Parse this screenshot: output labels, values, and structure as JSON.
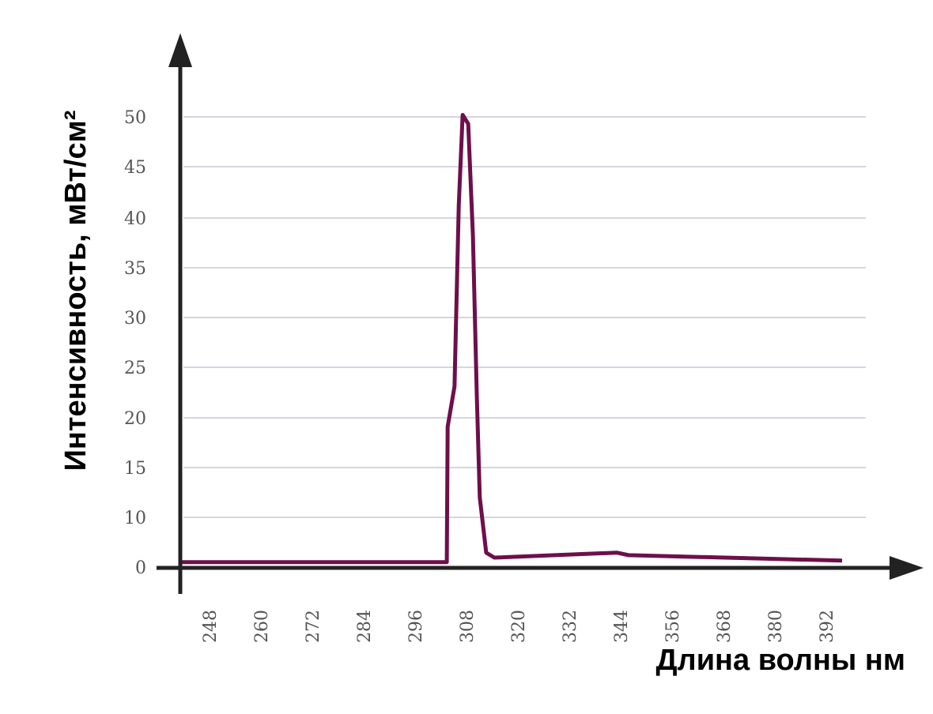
{
  "chart_data": {
    "type": "line",
    "title": "",
    "xlabel": "Длина волны нм",
    "ylabel": "Интенсивность, мВт/см²",
    "xticks": [
      248,
      260,
      272,
      284,
      296,
      308,
      320,
      332,
      344,
      356,
      368,
      380,
      392
    ],
    "yticks": [
      0,
      10,
      15,
      20,
      25,
      30,
      35,
      40,
      45,
      50
    ],
    "xlim": [
      241,
      400
    ],
    "ylim": [
      0,
      50
    ],
    "grid": true,
    "line_color": "#6e0f4a",
    "series": [
      {
        "x": [
          241.5,
          303.4,
          303.6,
          305.2,
          306.2,
          307.1,
          308.4,
          309.5,
          310.4,
          311.1,
          312.6,
          314.5,
          343.1,
          345.8,
          395.7
        ],
        "y": [
          1.0,
          1.0,
          19.1,
          23.1,
          41.3,
          50.2,
          49.3,
          38.2,
          22.3,
          12.0,
          2.9,
          1.9,
          2.9,
          2.4,
          1.3
        ]
      }
    ]
  }
}
